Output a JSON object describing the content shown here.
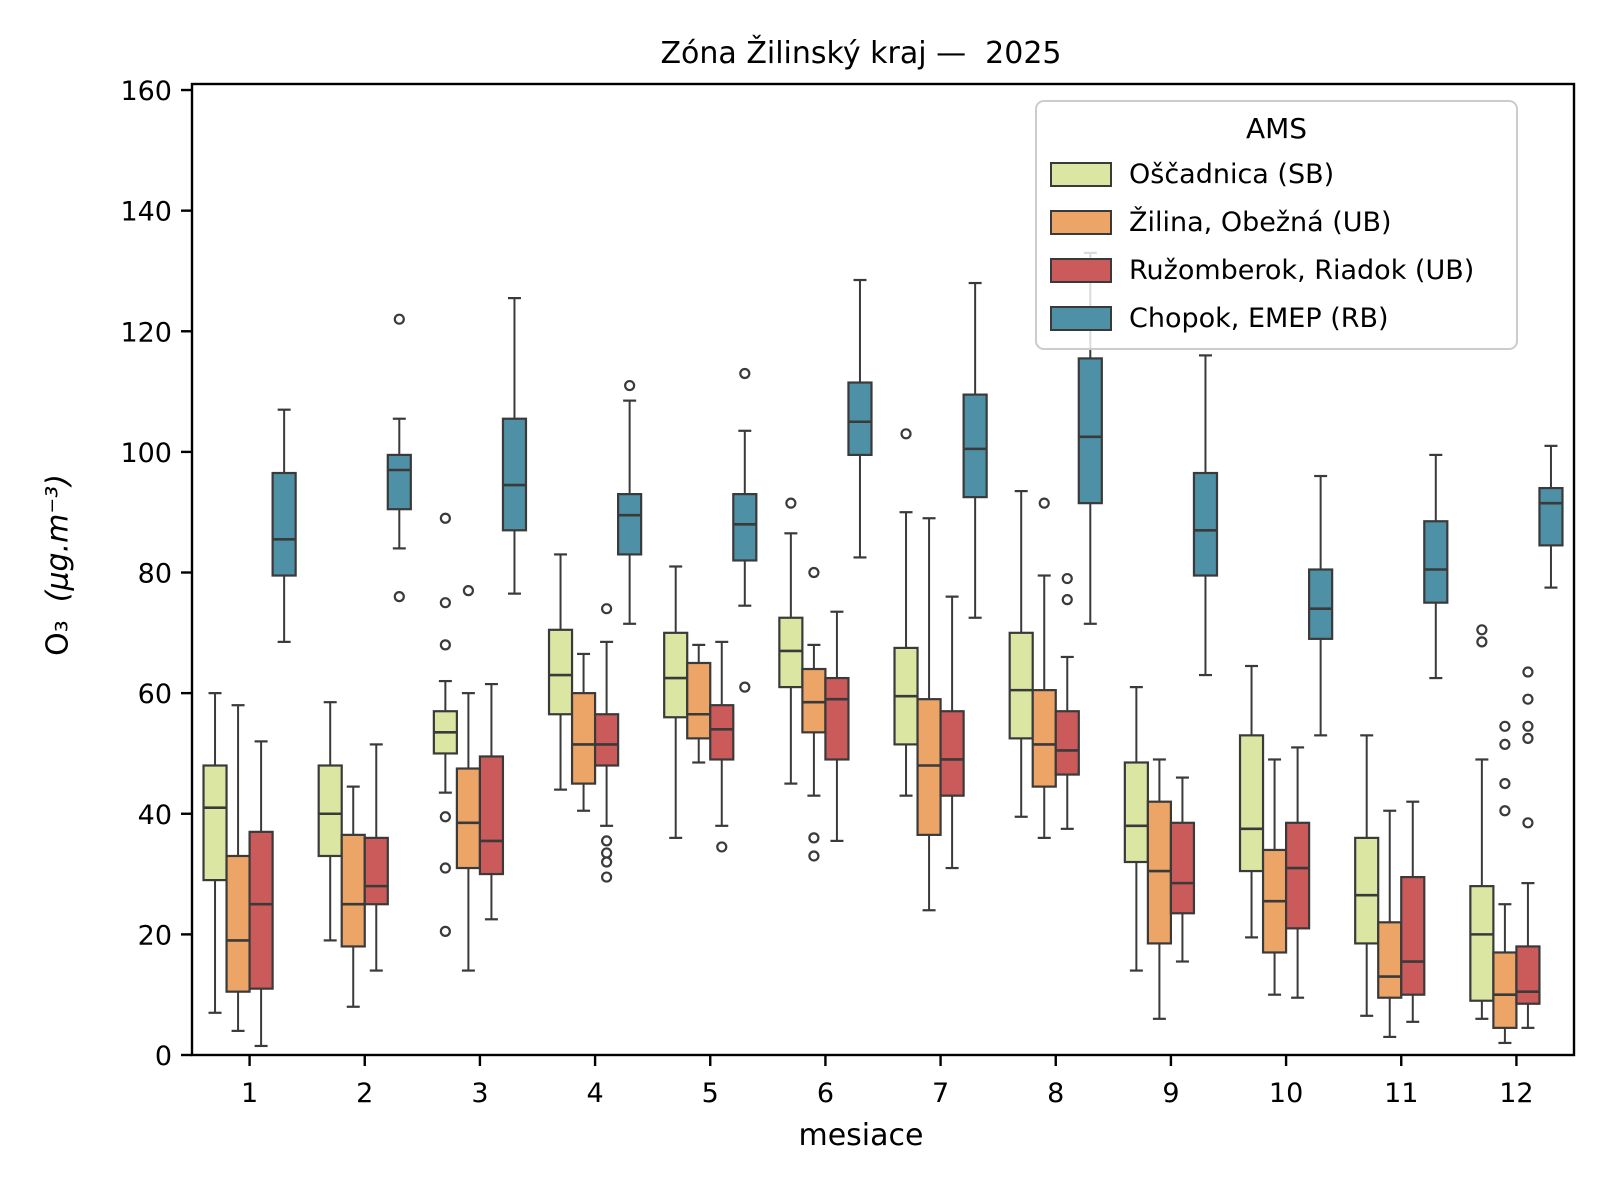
{
  "chart_data": {
    "type": "grouped_boxplot",
    "title": "Zóna Žilinský kraj —  2025",
    "xlabel": "mesiace",
    "ylabel_species": "O₃",
    "ylabel_unit": "(μg.m⁻³)",
    "ylim": [
      0,
      160
    ],
    "yticks": [
      "0",
      "20",
      "40",
      "60",
      "80",
      "100",
      "120",
      "140",
      "160"
    ],
    "categories": [
      "1",
      "2",
      "3",
      "4",
      "5",
      "6",
      "7",
      "8",
      "9",
      "10",
      "11",
      "12"
    ],
    "grid": false,
    "legend": {
      "title": "AMS",
      "position": "upper right"
    },
    "colors": {
      "axis": "#000000",
      "edge": "#3a3a3a",
      "background": "#ffffff"
    },
    "series": [
      {
        "id": "oscadnica",
        "name": "Oščadnica (SB)",
        "color": "#dce6a3",
        "boxes": [
          {
            "lo": 7,
            "q1": 29,
            "med": 41,
            "q3": 48,
            "hi": 60,
            "out": []
          },
          {
            "lo": 19,
            "q1": 33,
            "med": 40,
            "q3": 48,
            "hi": 58.5,
            "out": []
          },
          {
            "lo": 43.5,
            "q1": 50,
            "med": 53.5,
            "q3": 57,
            "hi": 62,
            "out": [
              89,
              75,
              68,
              39.5,
              31,
              20.5
            ]
          },
          {
            "lo": 44,
            "q1": 56.5,
            "med": 63,
            "q3": 70.5,
            "hi": 83,
            "out": []
          },
          {
            "lo": 36,
            "q1": 56,
            "med": 62.5,
            "q3": 70,
            "hi": 81,
            "out": []
          },
          {
            "lo": 45,
            "q1": 61,
            "med": 67,
            "q3": 72.5,
            "hi": 86.5,
            "out": [
              91.5
            ]
          },
          {
            "lo": 43,
            "q1": 51.5,
            "med": 59.5,
            "q3": 67.5,
            "hi": 90,
            "out": [
              103
            ]
          },
          {
            "lo": 39.5,
            "q1": 52.5,
            "med": 60.5,
            "q3": 70,
            "hi": 93.5,
            "out": []
          },
          {
            "lo": 14,
            "q1": 32,
            "med": 38,
            "q3": 48.5,
            "hi": 61,
            "out": []
          },
          {
            "lo": 19.5,
            "q1": 30.5,
            "med": 37.5,
            "q3": 53,
            "hi": 64.5,
            "out": []
          },
          {
            "lo": 6.5,
            "q1": 18.5,
            "med": 26.5,
            "q3": 36,
            "hi": 53,
            "out": []
          },
          {
            "lo": 6,
            "q1": 9,
            "med": 20,
            "q3": 28,
            "hi": 49,
            "out": [
              70.5,
              68.5
            ]
          }
        ]
      },
      {
        "id": "zilina-obezna",
        "name": "Žilina, Obežná (UB)",
        "color": "#eca566",
        "boxes": [
          {
            "lo": 4,
            "q1": 10.5,
            "med": 19,
            "q3": 33,
            "hi": 58,
            "out": []
          },
          {
            "lo": 8,
            "q1": 18,
            "med": 25,
            "q3": 36.5,
            "hi": 44.5,
            "out": []
          },
          {
            "lo": 14,
            "q1": 31,
            "med": 38.5,
            "q3": 47.5,
            "hi": 60,
            "out": [
              77
            ]
          },
          {
            "lo": 40.5,
            "q1": 45,
            "med": 51.5,
            "q3": 60,
            "hi": 66.5,
            "out": []
          },
          {
            "lo": 48.5,
            "q1": 52.5,
            "med": 56.5,
            "q3": 65,
            "hi": 68,
            "out": []
          },
          {
            "lo": 43,
            "q1": 53.5,
            "med": 58.5,
            "q3": 64,
            "hi": 68,
            "out": [
              80,
              36,
              33
            ]
          },
          {
            "lo": 24,
            "q1": 36.5,
            "med": 48,
            "q3": 59,
            "hi": 89,
            "out": []
          },
          {
            "lo": 36,
            "q1": 44.5,
            "med": 51.5,
            "q3": 60.5,
            "hi": 79.5,
            "out": [
              91.5
            ]
          },
          {
            "lo": 6,
            "q1": 18.5,
            "med": 30.5,
            "q3": 42,
            "hi": 49,
            "out": []
          },
          {
            "lo": 10,
            "q1": 17,
            "med": 25.5,
            "q3": 34,
            "hi": 49,
            "out": []
          },
          {
            "lo": 3,
            "q1": 9.5,
            "med": 13,
            "q3": 22,
            "hi": 40.5,
            "out": []
          },
          {
            "lo": 2,
            "q1": 4.5,
            "med": 10,
            "q3": 17,
            "hi": 25,
            "out": [
              54.5,
              51.5,
              45,
              40.5
            ]
          }
        ]
      },
      {
        "id": "ruzomberok-riadok",
        "name": "Ružomberok, Riadok (UB)",
        "color": "#cb5a5a",
        "boxes": [
          {
            "lo": 1.5,
            "q1": 11,
            "med": 25,
            "q3": 37,
            "hi": 52,
            "out": []
          },
          {
            "lo": 14,
            "q1": 25,
            "med": 28,
            "q3": 36,
            "hi": 51.5,
            "out": []
          },
          {
            "lo": 22.5,
            "q1": 30,
            "med": 35.5,
            "q3": 49.5,
            "hi": 61.5,
            "out": []
          },
          {
            "lo": 38,
            "q1": 48,
            "med": 51.5,
            "q3": 56.5,
            "hi": 68.5,
            "out": [
              74,
              35.5,
              33.5,
              32,
              29.5
            ]
          },
          {
            "lo": 38,
            "q1": 49,
            "med": 54,
            "q3": 58,
            "hi": 68.5,
            "out": [
              34.5
            ]
          },
          {
            "lo": 35.5,
            "q1": 49,
            "med": 59,
            "q3": 62.5,
            "hi": 73.5,
            "out": []
          },
          {
            "lo": 31,
            "q1": 43,
            "med": 49,
            "q3": 57,
            "hi": 76,
            "out": []
          },
          {
            "lo": 37.5,
            "q1": 46.5,
            "med": 50.5,
            "q3": 57,
            "hi": 66,
            "out": [
              79,
              75.5
            ]
          },
          {
            "lo": 15.5,
            "q1": 23.5,
            "med": 28.5,
            "q3": 38.5,
            "hi": 46,
            "out": []
          },
          {
            "lo": 9.5,
            "q1": 21,
            "med": 31,
            "q3": 38.5,
            "hi": 51,
            "out": []
          },
          {
            "lo": 5.5,
            "q1": 10,
            "med": 15.5,
            "q3": 29.5,
            "hi": 42,
            "out": []
          },
          {
            "lo": 4.5,
            "q1": 8.5,
            "med": 10.5,
            "q3": 18,
            "hi": 28.5,
            "out": [
              63.5,
              59,
              54.5,
              52.5,
              38.5
            ]
          }
        ]
      },
      {
        "id": "chopok-emep",
        "name": "Chopok, EMEP (RB)",
        "color": "#4e90a5",
        "boxes": [
          {
            "lo": 68.5,
            "q1": 79.5,
            "med": 85.5,
            "q3": 96.5,
            "hi": 107,
            "out": []
          },
          {
            "lo": 84,
            "q1": 90.5,
            "med": 97,
            "q3": 99.5,
            "hi": 105.5,
            "out": [
              122,
              76
            ]
          },
          {
            "lo": 76.5,
            "q1": 87,
            "med": 94.5,
            "q3": 105.5,
            "hi": 125.5,
            "out": []
          },
          {
            "lo": 71.5,
            "q1": 83,
            "med": 89.5,
            "q3": 93,
            "hi": 108.5,
            "out": [
              111
            ]
          },
          {
            "lo": 74.5,
            "q1": 82,
            "med": 88,
            "q3": 93,
            "hi": 103.5,
            "out": [
              113,
              61
            ]
          },
          {
            "lo": 82.5,
            "q1": 99.5,
            "med": 105,
            "q3": 111.5,
            "hi": 128.5,
            "out": []
          },
          {
            "lo": 72.5,
            "q1": 92.5,
            "med": 100.5,
            "q3": 109.5,
            "hi": 128,
            "out": []
          },
          {
            "lo": 71.5,
            "q1": 91.5,
            "med": 102.5,
            "q3": 115.5,
            "hi": 133,
            "out": []
          },
          {
            "lo": 63,
            "q1": 79.5,
            "med": 87,
            "q3": 96.5,
            "hi": 116,
            "out": []
          },
          {
            "lo": 53,
            "q1": 69,
            "med": 74,
            "q3": 80.5,
            "hi": 96,
            "out": []
          },
          {
            "lo": 62.5,
            "q1": 75,
            "med": 80.5,
            "q3": 88.5,
            "hi": 99.5,
            "out": []
          },
          {
            "lo": 77.5,
            "q1": 84.5,
            "med": 91.5,
            "q3": 94,
            "hi": 101,
            "out": []
          }
        ]
      }
    ]
  }
}
